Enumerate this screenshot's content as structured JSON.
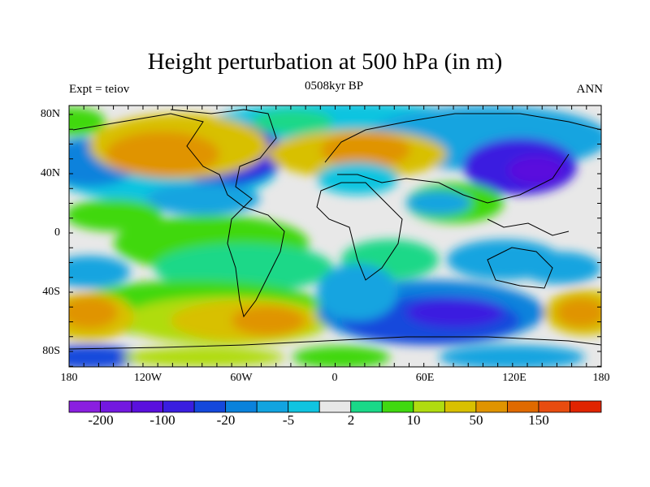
{
  "title": "Height perturbation at 500 hPa (in m)",
  "subtitle_left": "Expt = teiov",
  "subtitle_center": "0508kyr BP",
  "subtitle_right": "ANN",
  "lat_labels": [
    "80N",
    "40N",
    "0",
    "40S",
    "80S"
  ],
  "lon_labels": [
    "180",
    "120W",
    "60W",
    "0",
    "60E",
    "120E",
    "180"
  ],
  "colorbar": {
    "colors": [
      "#8a1fe0",
      "#7318e0",
      "#5a10dd",
      "#3a1ee0",
      "#1448dc",
      "#0a82dc",
      "#12a4e0",
      "#10c4e0",
      "#e8e8e8",
      "#1ad888",
      "#40d810",
      "#b0dc10",
      "#d8c000",
      "#e09400",
      "#e06a00",
      "#e84c10",
      "#e02400"
    ],
    "labels": [
      "-200",
      "-100",
      "-20",
      "-5",
      "2",
      "10",
      "50",
      "150"
    ]
  }
}
